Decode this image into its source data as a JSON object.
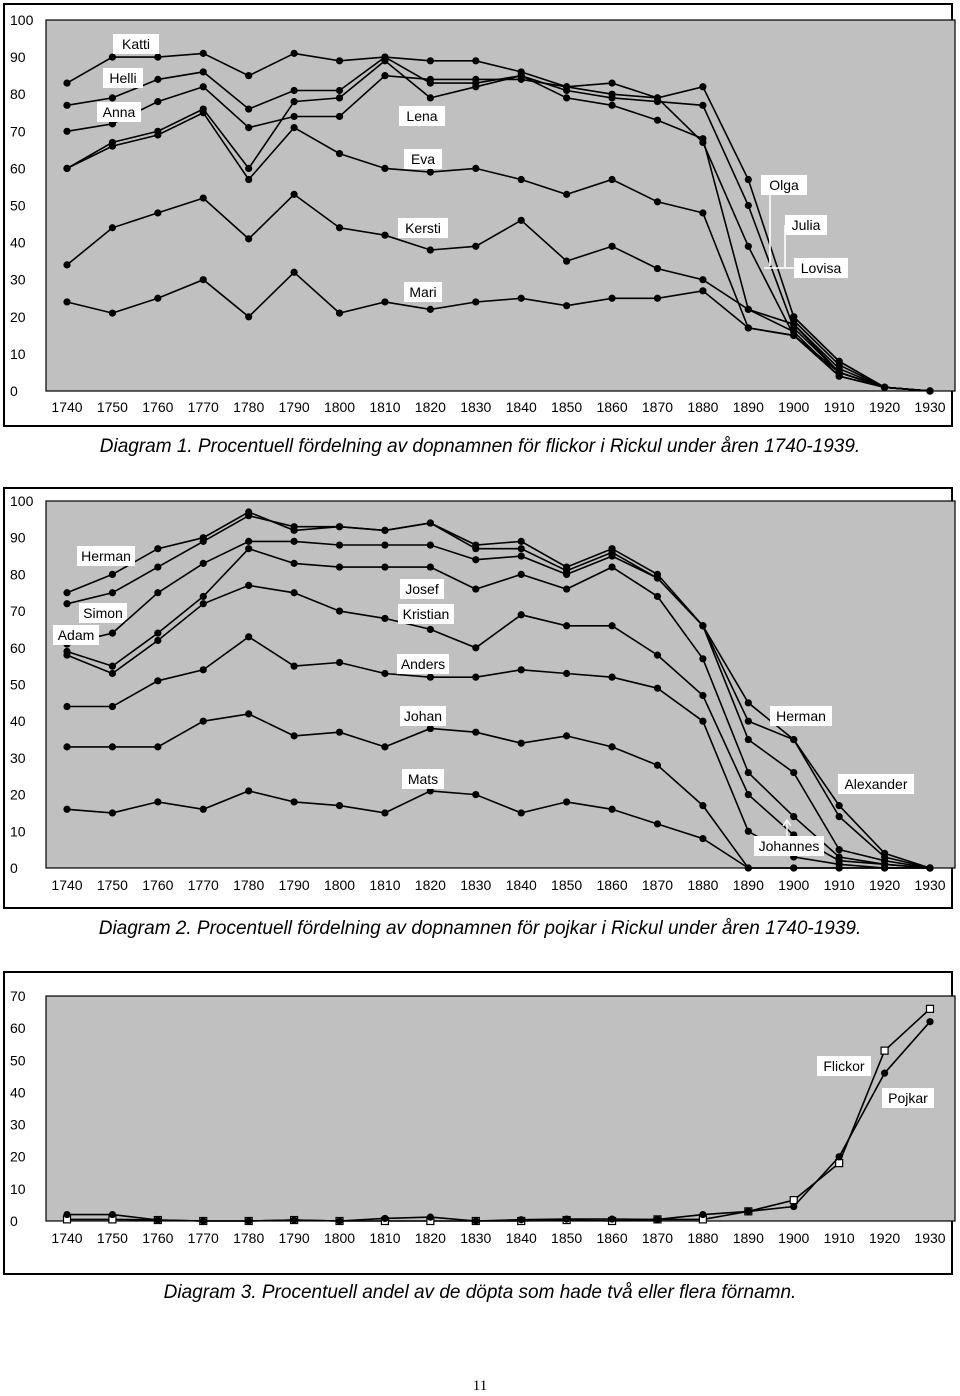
{
  "page_number": "11",
  "chart_data": [
    {
      "type": "line",
      "caption": "Diagram 1. Procentuell fördelning av dopnamnen för flickor i Rickul under åren 1740-1939.",
      "x": [
        1740,
        1750,
        1760,
        1770,
        1780,
        1790,
        1800,
        1810,
        1820,
        1830,
        1840,
        1850,
        1860,
        1870,
        1880,
        1890,
        1900,
        1910,
        1920,
        1930
      ],
      "ylim": [
        0,
        100
      ],
      "yticks": [
        0,
        10,
        20,
        30,
        40,
        50,
        60,
        70,
        80,
        90,
        100
      ],
      "grid": false,
      "series": [
        {
          "name": "Katti",
          "values": [
            83,
            90,
            90,
            91,
            85,
            91,
            89,
            90,
            89,
            89,
            86,
            82,
            83,
            79,
            82,
            57,
            20,
            8,
            1,
            0
          ]
        },
        {
          "name": "Helli",
          "values": [
            77,
            79,
            84,
            86,
            76,
            81,
            81,
            90,
            83,
            83,
            85,
            81,
            79,
            78,
            77,
            50,
            17,
            5,
            1,
            0
          ]
        },
        {
          "name": "Anna",
          "values": [
            70,
            72,
            78,
            82,
            71,
            74,
            74,
            85,
            84,
            84,
            84,
            82,
            80,
            79,
            67,
            39,
            15,
            5,
            1,
            0
          ]
        },
        {
          "name": "Lena",
          "values": [
            60,
            67,
            70,
            76,
            60,
            78,
            79,
            89,
            79,
            82,
            85,
            79,
            77,
            73,
            68,
            22,
            16,
            4,
            1,
            0
          ]
        },
        {
          "name": "Eva",
          "values": [
            60,
            66,
            69,
            75,
            57,
            71,
            64,
            60,
            59,
            60,
            57,
            53,
            57,
            51,
            48,
            17,
            15,
            4,
            1,
            0
          ]
        },
        {
          "name": "Kersti",
          "values": [
            34,
            44,
            48,
            52,
            41,
            53,
            44,
            42,
            38,
            39,
            46,
            35,
            39,
            33,
            30,
            22,
            18,
            5,
            1,
            0
          ]
        },
        {
          "name": "Mari",
          "values": [
            24,
            21,
            25,
            30,
            20,
            32,
            21,
            24,
            22,
            24,
            25,
            23,
            25,
            25,
            27,
            17,
            15,
            5,
            1,
            0
          ]
        },
        {
          "name": "Olga",
          "values": [
            null,
            null,
            null,
            null,
            null,
            null,
            null,
            null,
            null,
            null,
            null,
            null,
            null,
            null,
            null,
            null,
            20,
            8,
            1,
            0
          ]
        },
        {
          "name": "Julia",
          "values": [
            null,
            null,
            null,
            null,
            null,
            null,
            null,
            null,
            null,
            null,
            null,
            null,
            null,
            null,
            null,
            null,
            19,
            7,
            1,
            0
          ]
        },
        {
          "name": "Lovisa",
          "values": [
            null,
            null,
            null,
            null,
            null,
            null,
            null,
            null,
            null,
            null,
            null,
            null,
            null,
            null,
            null,
            null,
            18,
            6,
            1,
            0
          ]
        }
      ]
    },
    {
      "type": "line",
      "caption": "Diagram 2. Procentuell fördelning av dopnamnen för pojkar i Rickul under åren 1740-1939.",
      "x": [
        1740,
        1750,
        1760,
        1770,
        1780,
        1790,
        1800,
        1810,
        1820,
        1830,
        1840,
        1850,
        1860,
        1870,
        1880,
        1890,
        1900,
        1910,
        1920,
        1930
      ],
      "ylim": [
        0,
        100
      ],
      "yticks": [
        0,
        10,
        20,
        30,
        40,
        50,
        60,
        70,
        80,
        90,
        100
      ],
      "grid": false,
      "series": [
        {
          "name": "Herman",
          "values": [
            75,
            80,
            87,
            90,
            97,
            92,
            93,
            92,
            94,
            88,
            89,
            82,
            87,
            80,
            66,
            45,
            35,
            17,
            4,
            0
          ]
        },
        {
          "name": "Simon",
          "values": [
            72,
            75,
            82,
            89,
            96,
            93,
            93,
            92,
            94,
            87,
            87,
            81,
            86,
            79,
            66,
            40,
            35,
            14,
            3,
            0
          ]
        },
        {
          "name": "Adam",
          "values": [
            61,
            64,
            75,
            83,
            89,
            89,
            88,
            88,
            88,
            84,
            85,
            80,
            85,
            79,
            66,
            35,
            26,
            5,
            2,
            0
          ]
        },
        {
          "name": "Josef",
          "values": [
            59,
            55,
            64,
            74,
            87,
            83,
            82,
            82,
            82,
            76,
            80,
            76,
            82,
            74,
            57,
            26,
            14,
            3,
            1,
            0
          ]
        },
        {
          "name": "Kristian",
          "values": [
            58,
            53,
            62,
            72,
            77,
            75,
            70,
            68,
            65,
            60,
            69,
            66,
            66,
            58,
            47,
            20,
            9,
            2,
            1,
            0
          ]
        },
        {
          "name": "Anders",
          "values": [
            44,
            44,
            51,
            54,
            63,
            55,
            56,
            53,
            52,
            52,
            54,
            53,
            52,
            49,
            40,
            10,
            3,
            1,
            0,
            0
          ]
        },
        {
          "name": "Johan",
          "values": [
            33,
            33,
            33,
            40,
            42,
            36,
            37,
            33,
            38,
            37,
            34,
            36,
            33,
            28,
            17,
            0,
            0,
            0,
            0,
            0
          ]
        },
        {
          "name": "Mats",
          "values": [
            16,
            15,
            18,
            16,
            21,
            18,
            17,
            15,
            21,
            20,
            15,
            18,
            16,
            12,
            8,
            0,
            0,
            0,
            0,
            0
          ]
        }
      ],
      "annotations": [
        "Herman",
        "Alexander",
        "Johannes"
      ]
    },
    {
      "type": "line",
      "caption": "Diagram 3. Procentuell andel av de döpta som hade två eller flera förnamn.",
      "x": [
        1740,
        1750,
        1760,
        1770,
        1780,
        1790,
        1800,
        1810,
        1820,
        1830,
        1840,
        1850,
        1860,
        1870,
        1880,
        1890,
        1900,
        1910,
        1920,
        1930
      ],
      "ylim": [
        0,
        70
      ],
      "yticks": [
        0,
        10,
        20,
        30,
        40,
        50,
        60,
        70
      ],
      "grid": false,
      "series": [
        {
          "name": "Flickor",
          "marker": "square",
          "values": [
            0.5,
            0.5,
            0.3,
            0,
            0,
            0.3,
            0,
            0,
            0,
            0,
            0,
            0.3,
            0,
            0.5,
            0.5,
            3,
            6.5,
            18,
            53,
            66
          ]
        },
        {
          "name": "Pojkar",
          "marker": "circle",
          "values": [
            2,
            2,
            0.3,
            0,
            0,
            0.3,
            0,
            0.8,
            1.2,
            0,
            0.4,
            0.6,
            0.6,
            0.5,
            2,
            3,
            4.5,
            20,
            46,
            62
          ]
        }
      ]
    }
  ]
}
